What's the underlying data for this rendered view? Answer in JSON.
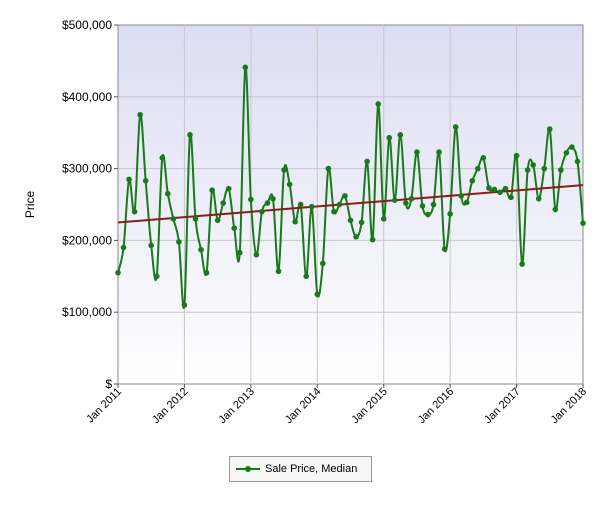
{
  "chart_data": {
    "type": "line",
    "ylabel": "Price",
    "ylim": [
      0,
      500000
    ],
    "y_ticks": [
      {
        "value": 0,
        "label": "$"
      },
      {
        "value": 100000,
        "label": "$100,000"
      },
      {
        "value": 200000,
        "label": "$200,000"
      },
      {
        "value": 300000,
        "label": "$300,000"
      },
      {
        "value": 400000,
        "label": "$400,000"
      },
      {
        "value": 500000,
        "label": "$500,000"
      }
    ],
    "x_ticks": [
      "Jan 2011",
      "Jan 2012",
      "Jan 2013",
      "Jan 2014",
      "Jan 2015",
      "Jan 2016",
      "Jan 2017",
      "Jan 2018"
    ],
    "x_start_month": "2011-01",
    "grid": true,
    "legend_position": "bottom-center",
    "series": [
      {
        "name": "Sale Price, Median",
        "color": "#1a7a1a",
        "values": [
          155000,
          190000,
          285000,
          240000,
          375000,
          283000,
          193000,
          150000,
          315000,
          265000,
          230000,
          198000,
          110000,
          347000,
          230000,
          187000,
          155000,
          270000,
          228000,
          252000,
          272000,
          217000,
          183000,
          441000,
          257000,
          180000,
          240000,
          252000,
          258000,
          157000,
          298000,
          278000,
          226000,
          250000,
          150000,
          247000,
          125000,
          168000,
          300000,
          240000,
          250000,
          262000,
          228000,
          205000,
          225000,
          310000,
          201000,
          390000,
          230000,
          343000,
          256000,
          347000,
          252000,
          258000,
          323000,
          248000,
          236000,
          250000,
          323000,
          188000,
          237000,
          358000,
          262000,
          253000,
          283000,
          300000,
          315000,
          273000,
          271000,
          267000,
          272000,
          260000,
          318000,
          167000,
          298000,
          305000,
          258000,
          300000,
          355000,
          243000,
          298000,
          322000,
          330000,
          310000,
          224000
        ]
      }
    ],
    "trendline": {
      "color": "#8b1a1a",
      "start": 225000,
      "end": 277000
    }
  }
}
